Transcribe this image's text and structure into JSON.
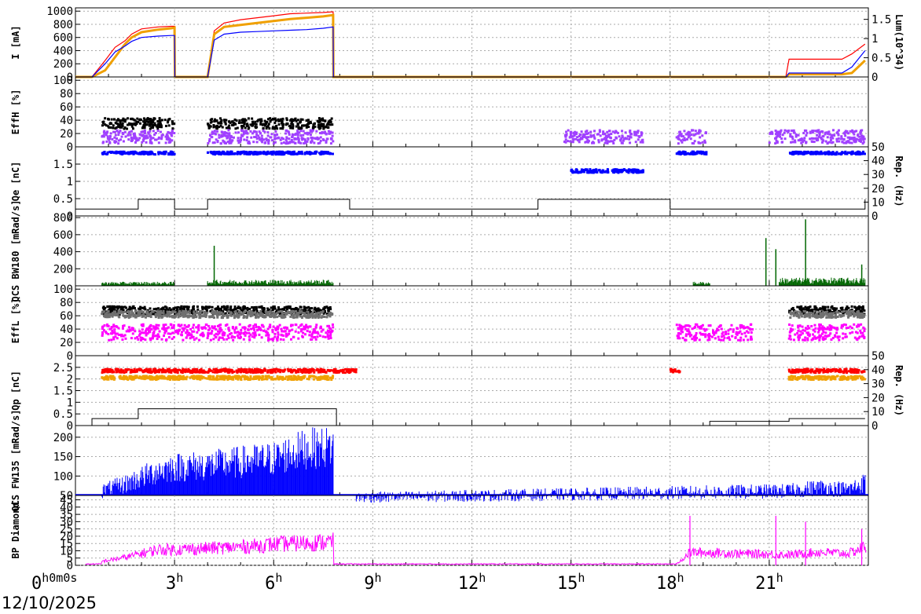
{
  "date": "12/10/2025",
  "time_ticks": [
    "0",
    "3",
    "6",
    "9",
    "12",
    "15",
    "18",
    "21"
  ],
  "time_axis": {
    "unit_hours": "h",
    "first_label_extra": "0m0s"
  },
  "colors": {
    "red": "#ff0000",
    "orange": "#f0a000",
    "blue": "#0000ff",
    "darkblue": "#0000aa",
    "black": "#000000",
    "purple": "#a040ff",
    "green": "#006600",
    "magenta": "#ff00ff",
    "gray": "#707070"
  },
  "chart_data": [
    {
      "type": "line",
      "id": "current",
      "ylabel": "I [mA]",
      "ylim": [
        0,
        1050
      ],
      "yticks": [
        0,
        200,
        400,
        600,
        800,
        1000
      ],
      "right_axis": {
        "label": "Lum(10^34)",
        "ticks": [
          "0",
          "0.5",
          "1",
          "1.5"
        ],
        "values": [
          0,
          0.5,
          1,
          1.5
        ],
        "max": 1.8
      },
      "x": [
        0,
        0.5,
        0.9,
        1.2,
        1.5,
        1.7,
        2.0,
        2.5,
        2.9,
        3.0,
        3.01,
        4.0,
        4.2,
        4.5,
        5.0,
        5.5,
        6.0,
        6.5,
        7.0,
        7.5,
        7.8,
        7.81,
        20.0,
        21.5,
        21.6,
        23.2,
        23.5,
        23.9
      ],
      "series": [
        {
          "color": "red",
          "values": [
            0,
            0,
            250,
            450,
            550,
            650,
            730,
            760,
            770,
            770,
            0,
            0,
            700,
            820,
            870,
            900,
            930,
            960,
            970,
            980,
            990,
            0,
            0,
            0,
            270,
            270,
            350,
            500
          ]
        },
        {
          "color": "orange",
          "values": [
            0,
            0,
            100,
            300,
            500,
            600,
            680,
            720,
            740,
            750,
            0,
            0,
            650,
            760,
            790,
            820,
            850,
            880,
            900,
            920,
            940,
            0,
            0,
            0,
            40,
            40,
            60,
            250
          ]
        },
        {
          "color": "blue",
          "values": [
            0,
            0,
            200,
            380,
            470,
            540,
            600,
            620,
            630,
            630,
            0,
            0,
            560,
            650,
            680,
            690,
            700,
            710,
            720,
            740,
            760,
            0,
            0,
            0,
            60,
            60,
            150,
            400
          ]
        }
      ]
    },
    {
      "type": "scatter",
      "id": "effh",
      "ylabel": "EffH [%]",
      "ylim": [
        0,
        105
      ],
      "yticks": [
        0,
        20,
        40,
        60,
        80,
        100
      ],
      "segments": [
        {
          "color": "black",
          "ranges": [
            [
              0.8,
              3.0
            ],
            [
              4.0,
              7.8
            ]
          ],
          "values_center": 35,
          "spread": 8
        },
        {
          "color": "purple",
          "ranges": [
            [
              0.8,
              3.0
            ],
            [
              4.0,
              7.8
            ],
            [
              14.8,
              17.2
            ],
            [
              18.2,
              19.1
            ],
            [
              21.0,
              23.9
            ]
          ],
          "values_center": 15,
          "spread": 10
        }
      ]
    },
    {
      "type": "scatter",
      "id": "qe",
      "ylabel": "Qe [nC]",
      "ylim": [
        0,
        2
      ],
      "yticks": [
        0,
        0.5,
        1,
        1.5
      ],
      "right_axis": {
        "label": "Rep. (Hz)",
        "ticks": [
          "0",
          "10",
          "20",
          "30",
          "40",
          "50"
        ],
        "max": 50
      },
      "segments": [
        {
          "color": "blue",
          "ranges": [
            [
              0.8,
              3.0
            ],
            [
              4.0,
              7.8
            ],
            [
              18.2,
              19.1
            ],
            [
              21.6,
              23.9
            ]
          ],
          "values_center": 1.82,
          "spread": 0.04
        },
        {
          "color": "blue",
          "ranges": [
            [
              15.0,
              17.2
            ]
          ],
          "values_center": 1.3,
          "spread": 0.05
        }
      ],
      "rate_line": {
        "x": [
          0,
          0.5,
          1.9,
          2.5,
          3.0,
          4.0,
          7.8,
          8.3,
          9.0,
          13.5,
          14.0,
          18.0,
          21.3,
          23.5,
          23.9
        ],
        "values": [
          5,
          5,
          12,
          12,
          5,
          12,
          12,
          5,
          5,
          5,
          12,
          5,
          5,
          5,
          12
        ]
      }
    },
    {
      "type": "area",
      "id": "bw180",
      "ylabel": "QCS BW180 [mRad/s]",
      "ylim": [
        0,
        820
      ],
      "yticks": [
        200,
        400,
        600,
        800
      ],
      "color": "green",
      "bursts": [
        [
          0.8,
          3.0,
          40
        ],
        [
          4.0,
          7.8,
          60
        ],
        [
          18.7,
          19.2,
          40
        ],
        [
          21.3,
          23.9,
          80
        ]
      ],
      "spikes": [
        [
          4.2,
          470
        ],
        [
          20.9,
          560
        ],
        [
          21.2,
          430
        ],
        [
          22.1,
          780
        ],
        [
          23.8,
          250
        ]
      ]
    },
    {
      "type": "scatter",
      "id": "effl",
      "ylabel": "EffL [%]",
      "ylim": [
        0,
        105
      ],
      "yticks": [
        0,
        20,
        40,
        60,
        80,
        100
      ],
      "segments": [
        {
          "color": "black",
          "ranges": [
            [
              0.8,
              7.8
            ],
            [
              21.6,
              23.9
            ]
          ],
          "values_center": 68,
          "spread": 6
        },
        {
          "color": "gray",
          "ranges": [
            [
              0.8,
              7.8
            ],
            [
              21.6,
              23.9
            ]
          ],
          "values_center": 62,
          "spread": 5
        },
        {
          "color": "magenta",
          "ranges": [
            [
              0.8,
              7.8
            ],
            [
              18.2,
              20.5
            ],
            [
              21.6,
              23.9
            ]
          ],
          "values_center": 35,
          "spread": 12
        }
      ]
    },
    {
      "type": "scatter",
      "id": "qp",
      "ylabel": "Qp [nC]",
      "ylim": [
        0,
        3
      ],
      "yticks": [
        0,
        0.5,
        1,
        1.5,
        2,
        2.5
      ],
      "right_axis": {
        "label": "Rep. (Hz)",
        "ticks": [
          "0",
          "10",
          "20",
          "30",
          "40",
          "50"
        ],
        "max": 50
      },
      "segments": [
        {
          "color": "red",
          "ranges": [
            [
              0.8,
              8.5
            ],
            [
              18.0,
              18.3
            ],
            [
              21.6,
              23.9
            ]
          ],
          "values_center": 2.35,
          "spread": 0.08
        },
        {
          "color": "orange",
          "ranges": [
            [
              0.8,
              7.8
            ],
            [
              21.6,
              23.9
            ]
          ],
          "values_center": 2.05,
          "spread": 0.08
        }
      ],
      "rate_line": {
        "x": [
          0,
          0.5,
          1.9,
          7.8,
          7.9,
          19.2,
          20.5,
          21.6,
          23.9
        ],
        "values": [
          0,
          5,
          12,
          12,
          0,
          3,
          3,
          5,
          5
        ]
      }
    },
    {
      "type": "area",
      "id": "fw135",
      "ylabel": "QCS FW135 [mRad/s]",
      "ylim": [
        50,
        230
      ],
      "yticks": [
        50,
        100,
        150,
        200
      ],
      "color": "blue",
      "envelope": {
        "x": [
          0.8,
          1.5,
          2.5,
          3.0,
          4.0,
          5.0,
          6.0,
          7.0,
          7.8,
          7.81,
          21.6,
          22.5,
          23.4,
          23.9
        ],
        "values": [
          70,
          90,
          130,
          140,
          145,
          155,
          165,
          195,
          200,
          50,
          70,
          80,
          75,
          95
        ]
      }
    },
    {
      "type": "line",
      "id": "bp",
      "ylabel": "BP Diamond",
      "ylim": [
        0,
        48
      ],
      "yticks": [
        0,
        5,
        10,
        15,
        20,
        25,
        30,
        35,
        40,
        45
      ],
      "color": "magenta",
      "envelope": {
        "x": [
          0.8,
          1.5,
          2.5,
          3.0,
          4.0,
          5.0,
          6.0,
          7.0,
          7.8,
          7.81,
          18.2,
          18.6,
          21.6,
          22.5,
          23.4,
          23.9
        ],
        "values": [
          3,
          6,
          12,
          12,
          13,
          14,
          16,
          17,
          18,
          1,
          1,
          10,
          8,
          10,
          9,
          14
        ]
      }
    }
  ]
}
